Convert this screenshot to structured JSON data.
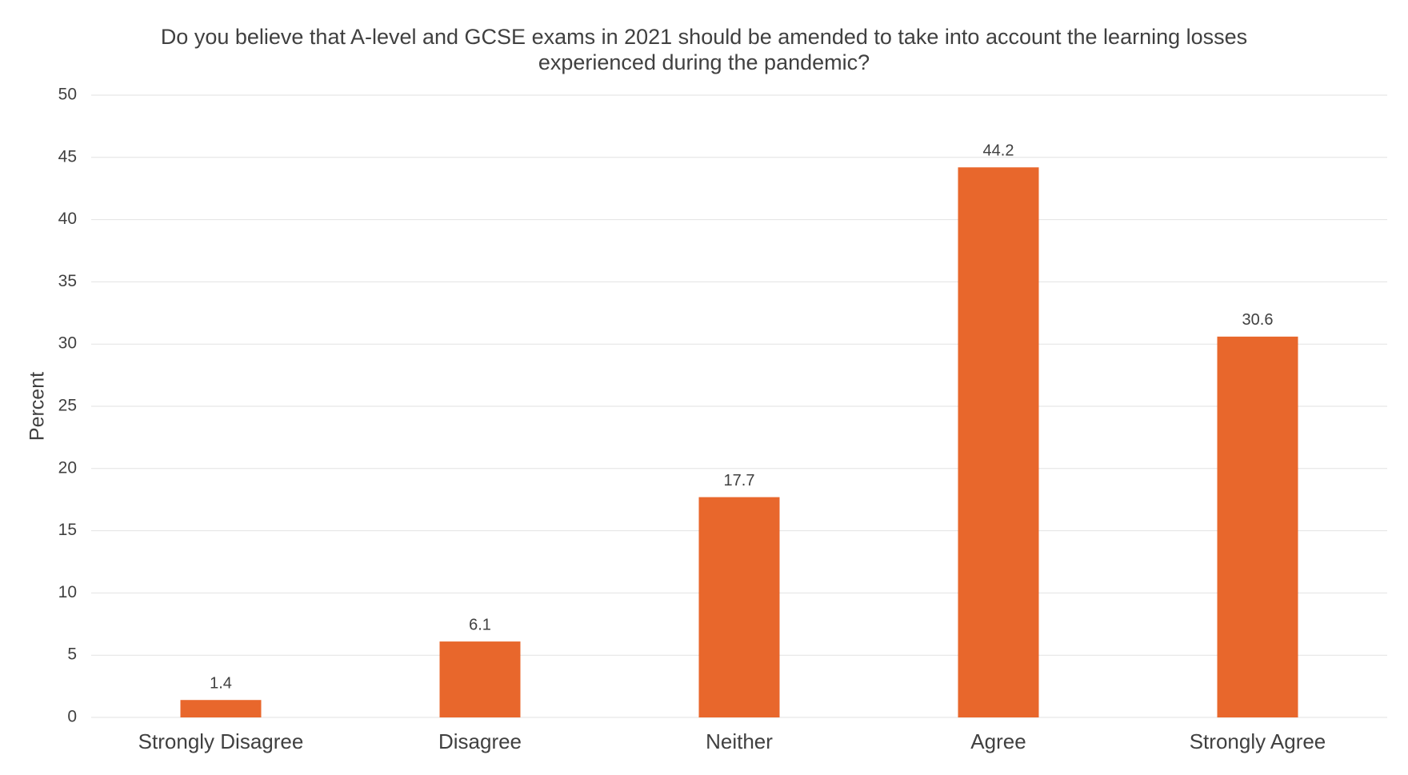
{
  "chart_data": {
    "type": "bar",
    "title": "Do you believe that A-level and GCSE exams in 2021 should be amended to take into account the learning losses experienced during the pandemic?",
    "y_label": "Percent",
    "categories": [
      "Strongly Disagree",
      "Disagree",
      "Neither",
      "Agree",
      "Strongly Agree"
    ],
    "values": [
      1.4,
      6.1,
      17.7,
      44.2,
      30.6
    ],
    "color": "#e8672c",
    "ylim": [
      0,
      50
    ],
    "yticks": [
      0,
      5,
      10,
      15,
      20,
      25,
      30,
      35,
      40,
      45,
      50
    ],
    "grid": true
  }
}
